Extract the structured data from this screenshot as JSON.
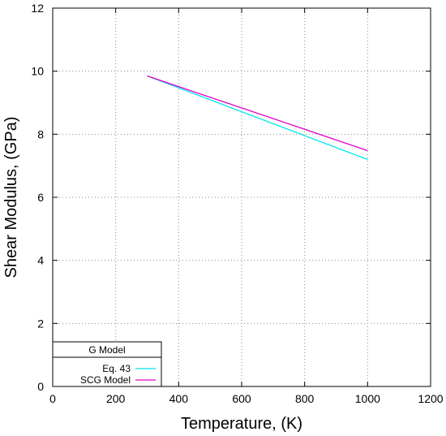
{
  "chart_data": {
    "type": "line",
    "xlabel": "Temperature, (K)",
    "ylabel": "Shear Modulus, (GPa)",
    "xlim": [
      0,
      1200
    ],
    "ylim": [
      0,
      12
    ],
    "xticks": [
      0,
      200,
      400,
      600,
      800,
      1000,
      1200
    ],
    "yticks": [
      0,
      2,
      4,
      6,
      8,
      10,
      12
    ],
    "grid": true,
    "legend": {
      "title": "G Model",
      "position": "bottom-left"
    },
    "series": [
      {
        "name": "Eq. 43",
        "color": "#00e5ee",
        "x": [
          300,
          1000
        ],
        "y": [
          9.85,
          7.2
        ]
      },
      {
        "name": "SCG Model",
        "color": "#e000c8",
        "x": [
          300,
          1000
        ],
        "y": [
          9.85,
          7.48
        ]
      }
    ]
  }
}
